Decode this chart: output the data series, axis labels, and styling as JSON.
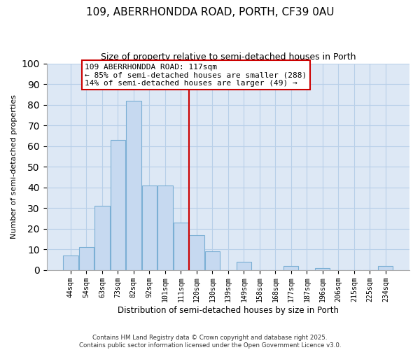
{
  "title": "109, ABERRHONDDA ROAD, PORTH, CF39 0AU",
  "subtitle": "Size of property relative to semi-detached houses in Porth",
  "xlabel": "Distribution of semi-detached houses by size in Porth",
  "ylabel": "Number of semi-detached properties",
  "bar_labels": [
    "44sqm",
    "54sqm",
    "63sqm",
    "73sqm",
    "82sqm",
    "92sqm",
    "101sqm",
    "111sqm",
    "120sqm",
    "130sqm",
    "139sqm",
    "149sqm",
    "158sqm",
    "168sqm",
    "177sqm",
    "187sqm",
    "196sqm",
    "206sqm",
    "215sqm",
    "225sqm",
    "234sqm"
  ],
  "bar_values": [
    7,
    11,
    31,
    63,
    82,
    41,
    41,
    23,
    17,
    9,
    0,
    4,
    0,
    0,
    2,
    0,
    1,
    0,
    0,
    0,
    2
  ],
  "bar_color": "#c6d9f0",
  "bar_edge_color": "#7bafd4",
  "vline_x": 7.5,
  "vline_color": "#cc0000",
  "ylim": [
    0,
    100
  ],
  "annotation_title": "109 ABERRHONDDA ROAD: 117sqm",
  "annotation_line1": "← 85% of semi-detached houses are smaller (288)",
  "annotation_line2": "14% of semi-detached houses are larger (49) →",
  "annotation_box_color": "#ffffff",
  "annotation_box_edge": "#cc0000",
  "footer1": "Contains HM Land Registry data © Crown copyright and database right 2025.",
  "footer2": "Contains public sector information licensed under the Open Government Licence v3.0.",
  "background_color": "#ffffff",
  "plot_bg_color": "#dde8f5",
  "grid_color": "#b8cfe8"
}
